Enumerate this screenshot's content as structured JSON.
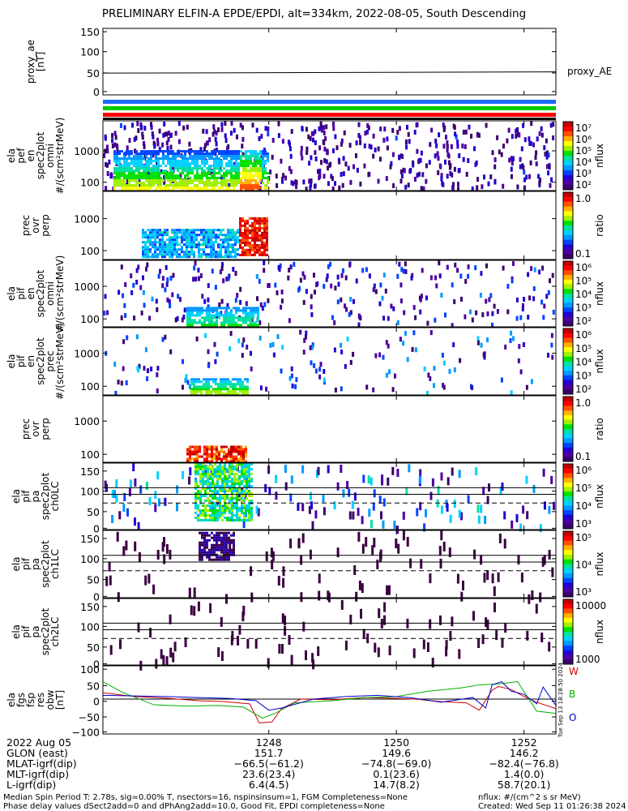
{
  "title": "PRELIMINARY ELFIN-A EPDE/EPDI, alt=334km, 2022-08-05, South Descending",
  "chart_data": [
    {
      "type": "line",
      "panel": "proxy_ae",
      "ylabel": [
        "proxy_ae",
        "[nT]"
      ],
      "yticks": [
        "150",
        "100",
        "50",
        "0"
      ],
      "ylim": [
        -10,
        155
      ],
      "series": [
        {
          "name": "proxy_AE",
          "x": [
            1245.4,
            1252.5
          ],
          "y": [
            44,
            47
          ]
        }
      ]
    },
    {
      "type": "heatmap",
      "panel": "ela_pef_en_spec2plot_omni",
      "ylabel": [
        "ela",
        "pef",
        "en",
        "spec2plot",
        "omni",
        "#/(scm²strMeV)"
      ],
      "yticks": [
        "1000",
        "100"
      ],
      "colorbar": {
        "label": "nflux",
        "ticks": [
          "10⁷",
          "10⁶",
          "10⁵",
          "10⁴",
          "10³",
          "10²"
        ]
      }
    },
    {
      "type": "heatmap",
      "panel": "prec_ovr_perp",
      "ylabel": [
        "prec",
        "ovr",
        "perp"
      ],
      "yticks": [
        "1000",
        "100"
      ],
      "colorbar": {
        "label": "ratio",
        "ticks": [
          "1.0",
          "0.1"
        ]
      }
    },
    {
      "type": "heatmap",
      "panel": "ela_pif_en_spec2plot_omni",
      "ylabel": [
        "ela",
        "pif",
        "en",
        "spec2plot",
        "omni",
        "#/(scm²strMeV)"
      ],
      "yticks": [
        "1000",
        "100"
      ],
      "colorbar": {
        "label": "nflux",
        "ticks": [
          "10⁶",
          "10⁵",
          "10⁴",
          "10³",
          "10²"
        ]
      }
    },
    {
      "type": "heatmap",
      "panel": "ela_pif_en_spec2plot_prec",
      "ylabel": [
        "ela",
        "pif",
        "en",
        "spec2plot",
        "prec",
        "#/(scm²strMeV)"
      ],
      "yticks": [
        "1000",
        "100"
      ],
      "colorbar": {
        "label": "nflux",
        "ticks": [
          "10⁶",
          "10⁵",
          "10⁴",
          "10³",
          "10²"
        ]
      }
    },
    {
      "type": "heatmap",
      "panel": "prec_ovr_perp_ion",
      "ylabel": [
        "prec",
        "ovr",
        "perp"
      ],
      "yticks": [
        "1000",
        "100"
      ],
      "colorbar": {
        "label": "ratio",
        "ticks": [
          "1.0",
          "0.1"
        ]
      }
    },
    {
      "type": "heatmap",
      "panel": "ela_pif_pa_spec2plot_ch0LC",
      "ylabel": [
        "ela",
        "pif",
        "pa",
        "spec2plot",
        "ch0LC"
      ],
      "yticks": [
        "150",
        "100",
        "50",
        "0"
      ],
      "colorbar": {
        "label": "nflux",
        "ticks": [
          "10⁶",
          "10⁵",
          "10⁴",
          "10³"
        ]
      }
    },
    {
      "type": "heatmap",
      "panel": "ela_pif_pa_spec2plot_ch1LC",
      "ylabel": [
        "ela",
        "pif",
        "pa",
        "spec2plot",
        "ch1LC"
      ],
      "yticks": [
        "150",
        "100",
        "50",
        "0"
      ],
      "colorbar": {
        "label": "nflux",
        "ticks": [
          "10⁵",
          "10⁴",
          "10³"
        ]
      }
    },
    {
      "type": "heatmap",
      "panel": "ela_pif_pa_spec2plot_ch2LC",
      "ylabel": [
        "ela",
        "pif",
        "pa",
        "spec2plot",
        "ch2LC"
      ],
      "yticks": [
        "150",
        "100",
        "50",
        "0"
      ],
      "colorbar": {
        "label": "nflux",
        "ticks": [
          "10000",
          "1000"
        ]
      }
    },
    {
      "type": "line",
      "panel": "ela_fgs_fsp_res_obw",
      "ylabel": [
        "ela",
        "fgs",
        "fsp",
        "res",
        "obw",
        "[nT]"
      ],
      "yticks": [
        "100",
        "50",
        "0",
        "−50",
        "−100"
      ],
      "ylim": [
        -110,
        105
      ],
      "side_note": "Tue Sep 13 18:28:50 2024",
      "series": [
        {
          "name": "W",
          "color": "#d00000",
          "x": [
            1245.4,
            1245.9,
            1246.4,
            1246.9,
            1247.3,
            1247.7,
            1247.85,
            1248.05,
            1248.2,
            1248.5,
            1249.0,
            1249.5,
            1249.9,
            1250.3,
            1250.7,
            1251.1,
            1251.3,
            1251.5,
            1251.6,
            1251.8,
            1252.0,
            1252.2,
            1252.5
          ],
          "y": [
            20,
            8,
            3,
            -5,
            -8,
            -15,
            -75,
            -72,
            -30,
            0,
            -2,
            5,
            3,
            0,
            -8,
            -12,
            -35,
            28,
            40,
            30,
            8,
            -10,
            -30
          ]
        },
        {
          "name": "B",
          "color": "#00b000",
          "x": [
            1245.4,
            1245.7,
            1246.2,
            1246.7,
            1247.2,
            1247.6,
            1247.9,
            1248.1,
            1248.4,
            1249.0,
            1249.5,
            1250.0,
            1250.5,
            1251.0,
            1251.3,
            1251.6,
            1251.9,
            1252.2,
            1252.5
          ],
          "y": [
            55,
            22,
            -18,
            -22,
            -20,
            -25,
            -60,
            -45,
            -12,
            -5,
            5,
            8,
            25,
            35,
            45,
            48,
            55,
            -38,
            -45
          ]
        },
        {
          "name": "O",
          "color": "#0000d0",
          "x": [
            1245.4,
            1245.9,
            1246.4,
            1246.9,
            1247.4,
            1247.8,
            1248.0,
            1248.2,
            1248.7,
            1249.2,
            1249.7,
            1250.2,
            1250.7,
            1251.2,
            1251.4,
            1251.5,
            1251.65,
            1251.8,
            1252.0,
            1252.2,
            1252.3,
            1252.5
          ],
          "y": [
            12,
            10,
            8,
            5,
            2,
            -5,
            -35,
            -28,
            0,
            8,
            12,
            5,
            -10,
            5,
            -28,
            45,
            55,
            25,
            15,
            -15,
            38,
            -20
          ]
        }
      ]
    }
  ],
  "xaxis": {
    "date": "2022 Aug 05",
    "ticks": [
      "1248",
      "1250",
      "1252"
    ],
    "ticks_x": [
      1248,
      1250,
      1252
    ],
    "xlim": [
      1245.4,
      1252.5
    ],
    "rows": [
      {
        "label": "GLON (east)",
        "values": [
          "151.7",
          "149.6",
          "146.2"
        ]
      },
      {
        "label": "MLAT-igrf(dip)",
        "values": [
          "−66.5(−61.2)",
          "−74.8(−69.0)",
          "−82.4(−76.8)"
        ]
      },
      {
        "label": "MLT-igrf(dip)",
        "values": [
          "23.6(23.4)",
          "0.1(23.6)",
          "1.4(0.0)"
        ]
      },
      {
        "label": "L-igrf(dip)",
        "values": [
          "6.4(4.5)",
          "14.7(8.2)",
          "58.7(20.1)"
        ]
      }
    ]
  },
  "footer": {
    "line1_left": "Median Spin Period T: 2.78s, sig=0.00% T, nsectors=16, nspinsinsum=1, FGM Completeness=None",
    "line2_left": "Phase delay values dSect2add=0 and dPhAng2add=10.0, Good Fit, EPDI completeness=None",
    "line1_right": "nflux: #/(cm^2 s sr MeV)",
    "line2_right": "Created: Wed Sep 11 01:26:38 2024"
  },
  "colors": {
    "bar_blue": "#1a6bff",
    "bar_green": "#00cc00",
    "bar_red": "#ff0000"
  }
}
